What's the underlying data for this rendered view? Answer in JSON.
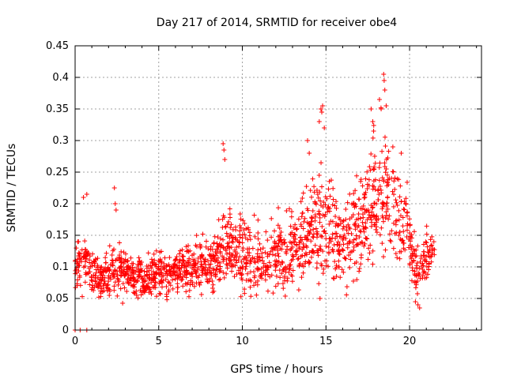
{
  "chart_data": {
    "type": "scatter",
    "title": "Day 217 of 2014, SRMTID for receiver obe4",
    "xlabel": "GPS time / hours",
    "ylabel": "SRMTID / TECUs",
    "xlim": [
      0,
      24.3
    ],
    "ylim": [
      0,
      0.45
    ],
    "x_ticks": [
      0,
      5,
      10,
      15,
      20
    ],
    "y_ticks": [
      0,
      0.05,
      0.1,
      0.15,
      0.2,
      0.25,
      0.3,
      0.35,
      0.4,
      0.45
    ],
    "x_tick_labels": [
      "0",
      "5",
      "10",
      "15",
      "20"
    ],
    "y_tick_labels": [
      "0",
      "0.05",
      "0.1",
      "0.15",
      "0.2",
      "0.25",
      "0.3",
      "0.35",
      "0.4",
      "0.45"
    ],
    "grid": true,
    "marker": "+",
    "color": "#ff0000",
    "series": [
      {
        "name": "SRMTID",
        "profile": {
          "hours": [
            0.0,
            0.5,
            1.0,
            1.5,
            2.0,
            2.5,
            3.0,
            3.5,
            4.0,
            4.5,
            5.0,
            5.5,
            6.0,
            6.5,
            7.0,
            7.5,
            8.0,
            8.5,
            9.0,
            9.5,
            10.0,
            10.5,
            11.0,
            11.5,
            12.0,
            12.5,
            13.0,
            13.5,
            14.0,
            14.5,
            15.0,
            15.5,
            16.0,
            16.5,
            17.0,
            17.5,
            18.0,
            18.5,
            19.0,
            19.5,
            20.0,
            20.5,
            21.0,
            21.5
          ],
          "center": [
            0.1,
            0.11,
            0.09,
            0.085,
            0.09,
            0.1,
            0.09,
            0.085,
            0.08,
            0.085,
            0.09,
            0.085,
            0.09,
            0.095,
            0.1,
            0.1,
            0.1,
            0.11,
            0.14,
            0.13,
            0.12,
            0.12,
            0.11,
            0.11,
            0.12,
            0.12,
            0.13,
            0.14,
            0.15,
            0.17,
            0.16,
            0.15,
            0.14,
            0.16,
            0.17,
            0.18,
            0.21,
            0.22,
            0.2,
            0.17,
            0.14,
            0.08,
            0.12,
            0.13
          ],
          "spread": [
            0.03,
            0.04,
            0.03,
            0.025,
            0.035,
            0.04,
            0.03,
            0.03,
            0.03,
            0.03,
            0.03,
            0.03,
            0.03,
            0.035,
            0.04,
            0.04,
            0.04,
            0.05,
            0.06,
            0.05,
            0.05,
            0.05,
            0.05,
            0.05,
            0.05,
            0.05,
            0.05,
            0.06,
            0.07,
            0.08,
            0.08,
            0.07,
            0.06,
            0.07,
            0.08,
            0.08,
            0.09,
            0.09,
            0.08,
            0.07,
            0.06,
            0.04,
            0.04,
            0.03
          ]
        },
        "outliers": [
          {
            "x": 0.0,
            "y": 0.0
          },
          {
            "x": 0.3,
            "y": 0.0
          },
          {
            "x": 0.7,
            "y": 0.0
          },
          {
            "x": 0.2,
            "y": 0.14
          },
          {
            "x": 0.5,
            "y": 0.21
          },
          {
            "x": 0.7,
            "y": 0.215
          },
          {
            "x": 2.35,
            "y": 0.225
          },
          {
            "x": 2.4,
            "y": 0.2
          },
          {
            "x": 2.45,
            "y": 0.19
          },
          {
            "x": 8.85,
            "y": 0.295
          },
          {
            "x": 8.9,
            "y": 0.285
          },
          {
            "x": 8.95,
            "y": 0.27
          },
          {
            "x": 13.9,
            "y": 0.3
          },
          {
            "x": 14.0,
            "y": 0.28
          },
          {
            "x": 14.7,
            "y": 0.35
          },
          {
            "x": 14.75,
            "y": 0.345
          },
          {
            "x": 14.8,
            "y": 0.355
          },
          {
            "x": 14.6,
            "y": 0.33
          },
          {
            "x": 14.9,
            "y": 0.32
          },
          {
            "x": 17.7,
            "y": 0.35
          },
          {
            "x": 17.8,
            "y": 0.33
          },
          {
            "x": 17.85,
            "y": 0.315
          },
          {
            "x": 18.2,
            "y": 0.365
          },
          {
            "x": 18.3,
            "y": 0.35
          },
          {
            "x": 18.45,
            "y": 0.405
          },
          {
            "x": 18.48,
            "y": 0.395
          },
          {
            "x": 18.52,
            "y": 0.38
          },
          {
            "x": 18.6,
            "y": 0.355
          },
          {
            "x": 19.0,
            "y": 0.29
          },
          {
            "x": 19.5,
            "y": 0.28
          },
          {
            "x": 20.5,
            "y": 0.04
          },
          {
            "x": 20.6,
            "y": 0.035
          }
        ]
      }
    ]
  }
}
